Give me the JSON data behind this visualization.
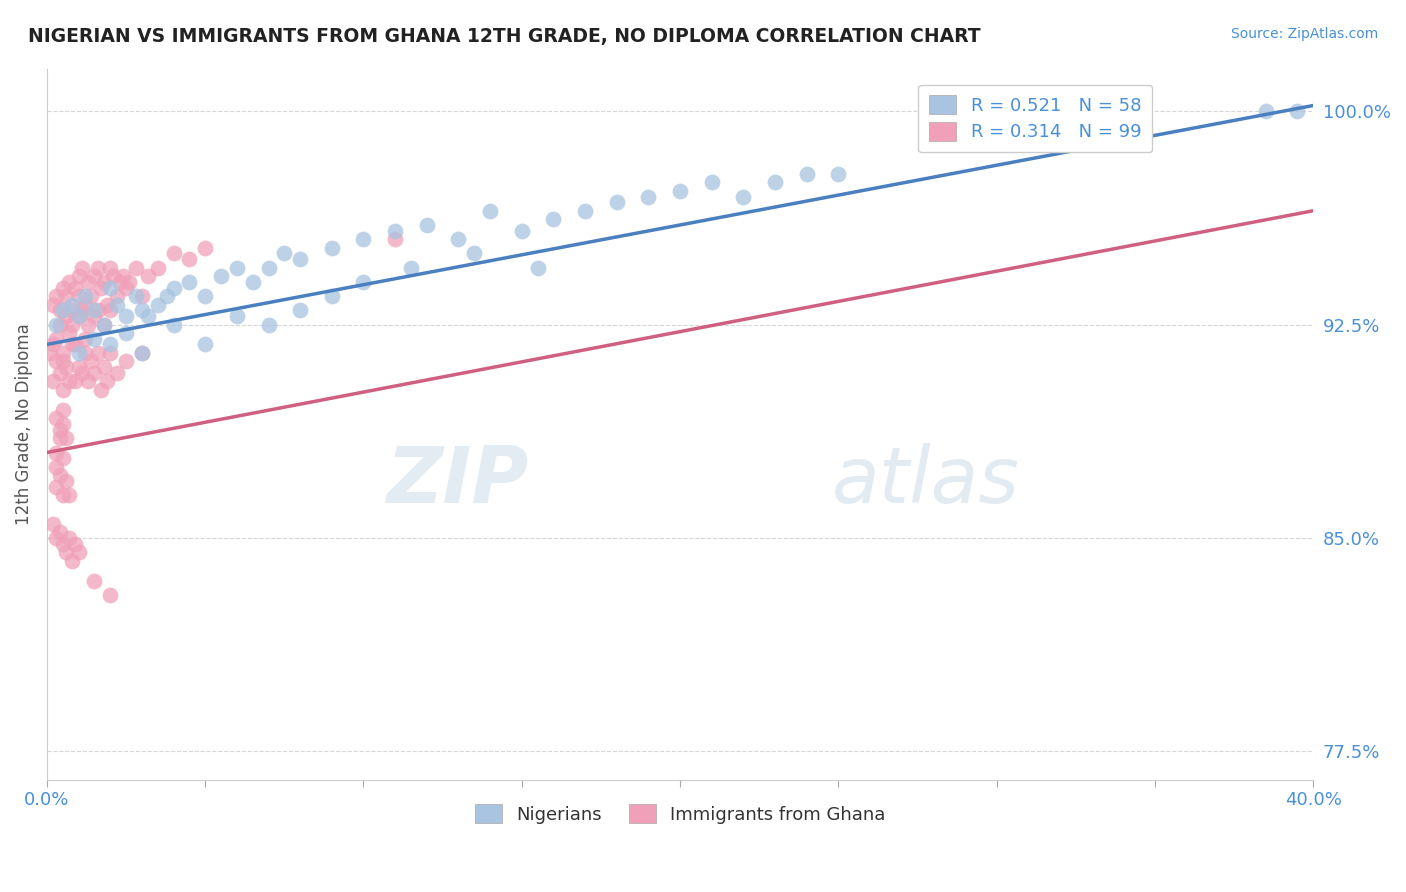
{
  "title": "NIGERIAN VS IMMIGRANTS FROM GHANA 12TH GRADE, NO DIPLOMA CORRELATION CHART",
  "source": "Source: ZipAtlas.com",
  "xmin": 0.0,
  "xmax": 40.0,
  "ymin": 76.5,
  "ymax": 101.5,
  "legend_blue_label": "R = 0.521   N = 58",
  "legend_pink_label": "R = 0.314   N = 99",
  "legend_bottom_blue": "Nigerians",
  "legend_bottom_pink": "Immigrants from Ghana",
  "blue_color": "#a8c4e0",
  "pink_color": "#f0a0b8",
  "blue_line_color": "#4a7fc0",
  "pink_line_color": "#d06080",
  "axis_label_color": "#4a90d9",
  "ytick_vals": [
    77.5,
    85.0,
    92.5,
    100.0
  ],
  "ytick_labels": [
    "77.5%",
    "85.0%",
    "92.5%",
    "100.0%"
  ],
  "blue_scatter_x": [
    0.3,
    0.5,
    0.8,
    1.0,
    1.2,
    1.5,
    1.8,
    2.0,
    2.2,
    2.5,
    2.8,
    3.0,
    3.2,
    3.5,
    3.8,
    4.0,
    4.5,
    5.0,
    5.5,
    6.0,
    6.5,
    7.0,
    7.5,
    8.0,
    9.0,
    10.0,
    11.0,
    12.0,
    13.0,
    14.0,
    15.0,
    16.0,
    17.0,
    18.0,
    19.0,
    20.0,
    21.0,
    22.0,
    23.0,
    24.0,
    1.0,
    1.5,
    2.0,
    2.5,
    3.0,
    4.0,
    5.0,
    6.0,
    7.0,
    8.0,
    9.0,
    10.0,
    11.5,
    13.5,
    15.5,
    25.0,
    38.5,
    39.5
  ],
  "blue_scatter_y": [
    92.5,
    93.0,
    93.2,
    92.8,
    93.5,
    93.0,
    92.5,
    93.8,
    93.2,
    92.8,
    93.5,
    93.0,
    92.8,
    93.2,
    93.5,
    93.8,
    94.0,
    93.5,
    94.2,
    94.5,
    94.0,
    94.5,
    95.0,
    94.8,
    95.2,
    95.5,
    95.8,
    96.0,
    95.5,
    96.5,
    95.8,
    96.2,
    96.5,
    96.8,
    97.0,
    97.2,
    97.5,
    97.0,
    97.5,
    97.8,
    91.5,
    92.0,
    91.8,
    92.2,
    91.5,
    92.5,
    91.8,
    92.8,
    92.5,
    93.0,
    93.5,
    94.0,
    94.5,
    95.0,
    94.5,
    97.8,
    100.0,
    100.0
  ],
  "pink_scatter_x": [
    0.1,
    0.2,
    0.2,
    0.3,
    0.3,
    0.4,
    0.4,
    0.5,
    0.5,
    0.6,
    0.6,
    0.7,
    0.7,
    0.8,
    0.8,
    0.9,
    0.9,
    1.0,
    1.0,
    1.0,
    1.1,
    1.1,
    1.2,
    1.2,
    1.3,
    1.3,
    1.4,
    1.5,
    1.5,
    1.6,
    1.6,
    1.7,
    1.8,
    1.8,
    1.9,
    2.0,
    2.0,
    2.1,
    2.2,
    2.3,
    2.4,
    2.5,
    2.6,
    2.8,
    3.0,
    3.2,
    3.5,
    4.0,
    4.5,
    5.0,
    0.2,
    0.3,
    0.4,
    0.5,
    0.5,
    0.6,
    0.7,
    0.8,
    0.9,
    1.0,
    1.1,
    1.2,
    1.3,
    1.4,
    1.5,
    1.6,
    1.7,
    1.8,
    1.9,
    2.0,
    2.2,
    2.5,
    3.0,
    0.3,
    0.4,
    0.5,
    0.6,
    0.3,
    0.4,
    0.5,
    0.3,
    0.3,
    0.4,
    0.5,
    0.5,
    0.6,
    0.7,
    0.2,
    0.3,
    0.4,
    0.5,
    0.6,
    0.7,
    0.8,
    0.9,
    1.0,
    1.5,
    2.0,
    11.0
  ],
  "pink_scatter_y": [
    91.5,
    93.2,
    91.8,
    93.5,
    92.0,
    92.5,
    93.0,
    91.2,
    93.8,
    92.8,
    93.5,
    92.2,
    94.0,
    93.0,
    92.5,
    93.8,
    91.8,
    94.2,
    93.5,
    92.8,
    93.0,
    94.5,
    92.0,
    93.2,
    94.0,
    92.5,
    93.5,
    94.2,
    92.8,
    93.0,
    94.5,
    93.8,
    92.5,
    94.0,
    93.2,
    94.5,
    93.0,
    94.2,
    93.5,
    94.0,
    94.2,
    93.8,
    94.0,
    94.5,
    93.5,
    94.2,
    94.5,
    95.0,
    94.8,
    95.2,
    90.5,
    91.2,
    90.8,
    91.5,
    90.2,
    91.0,
    90.5,
    91.8,
    90.5,
    91.0,
    90.8,
    91.5,
    90.5,
    91.2,
    90.8,
    91.5,
    90.2,
    91.0,
    90.5,
    91.5,
    90.8,
    91.2,
    91.5,
    89.2,
    88.8,
    89.5,
    88.5,
    88.0,
    88.5,
    89.0,
    87.5,
    86.8,
    87.2,
    86.5,
    87.8,
    87.0,
    86.5,
    85.5,
    85.0,
    85.2,
    84.8,
    84.5,
    85.0,
    84.2,
    84.8,
    84.5,
    83.5,
    83.0,
    95.5
  ],
  "blue_trendline_x0": 0.0,
  "blue_trendline_y0": 91.8,
  "blue_trendline_x1": 40.0,
  "blue_trendline_y1": 100.2,
  "pink_trendline_x0": 0.0,
  "pink_trendline_y0": 88.0,
  "pink_trendline_x1": 40.0,
  "pink_trendline_y1": 96.5
}
